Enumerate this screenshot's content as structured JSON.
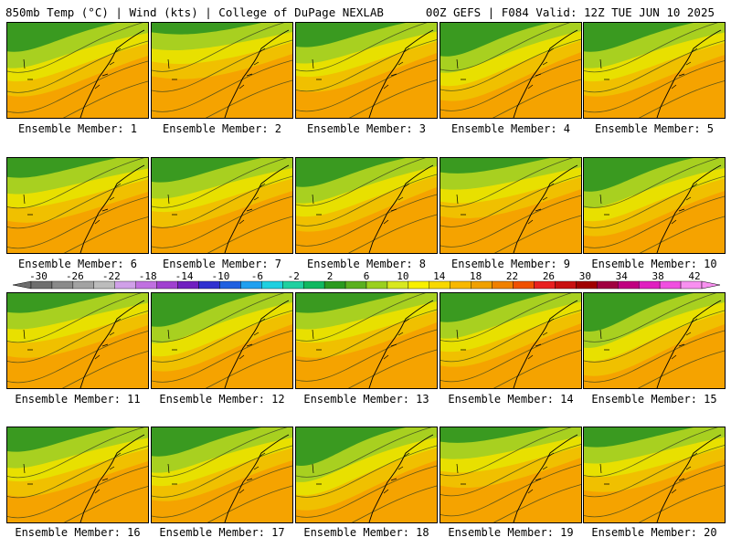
{
  "header": {
    "left_title": "850mb Temp (°C) | Wind (kts) | College of DuPage NEXLAB",
    "right_title": "00Z GEFS | F084 Valid: 12Z TUE JUN 10 2025"
  },
  "ensemble_members": [
    {
      "label": "Ensemble Member: 1",
      "green": 0.55,
      "tilt": 0.3
    },
    {
      "label": "Ensemble Member: 2",
      "green": 0.35,
      "tilt": 0.2
    },
    {
      "label": "Ensemble Member: 3",
      "green": 0.5,
      "tilt": 0.15
    },
    {
      "label": "Ensemble Member: 4",
      "green": 0.6,
      "tilt": 0.1
    },
    {
      "label": "Ensemble Member: 5",
      "green": 0.55,
      "tilt": 0.25
    },
    {
      "label": "Ensemble Member: 6",
      "green": 0.45,
      "tilt": 0.35
    },
    {
      "label": "Ensemble Member: 7",
      "green": 0.5,
      "tilt": 0.3
    },
    {
      "label": "Ensemble Member: 8",
      "green": 0.55,
      "tilt": 0.1
    },
    {
      "label": "Ensemble Member: 9",
      "green": 0.4,
      "tilt": 0.2
    },
    {
      "label": "Ensemble Member: 10",
      "green": 0.6,
      "tilt": 0.3
    },
    {
      "label": "Ensemble Member: 11",
      "green": 0.45,
      "tilt": 0.25
    },
    {
      "label": "Ensemble Member: 12",
      "green": 0.6,
      "tilt": 0.2
    },
    {
      "label": "Ensemble Member: 13",
      "green": 0.45,
      "tilt": 0.1
    },
    {
      "label": "Ensemble Member: 14",
      "green": 0.55,
      "tilt": 0.15
    },
    {
      "label": "Ensemble Member: 15",
      "green": 0.65,
      "tilt": 0.2
    },
    {
      "label": "Ensemble Member: 16",
      "green": 0.5,
      "tilt": 0.35
    },
    {
      "label": "Ensemble Member: 17",
      "green": 0.55,
      "tilt": 0.3
    },
    {
      "label": "Ensemble Member: 18",
      "green": 0.65,
      "tilt": 0.3
    },
    {
      "label": "Ensemble Member: 19",
      "green": 0.4,
      "tilt": 0.15
    },
    {
      "label": "Ensemble Member: 20",
      "green": 0.45,
      "tilt": 0.25
    }
  ],
  "color_scale": {
    "ticks": [
      "-30",
      "-26",
      "-22",
      "-18",
      "-14",
      "-10",
      "-6",
      "-2",
      "2",
      "6",
      "10",
      "14",
      "18",
      "22",
      "26",
      "30",
      "34",
      "38",
      "42"
    ],
    "colors": [
      "#6e6e6e",
      "#8a8a8a",
      "#a2a2a2",
      "#bcbcbc",
      "#d0a0e8",
      "#c070e0",
      "#a040d0",
      "#7020c0",
      "#3030d0",
      "#2060e0",
      "#20a0f0",
      "#20d0e0",
      "#20d0a0",
      "#10b860",
      "#2a9a20",
      "#5ab020",
      "#9ad020",
      "#d8e820",
      "#f8f000",
      "#f8d800",
      "#f8b800",
      "#f0a000",
      "#f08000",
      "#f05000",
      "#e82020",
      "#c81010",
      "#a00000",
      "#a00040",
      "#c00080",
      "#e020c0",
      "#f050e0",
      "#f890f0"
    ]
  }
}
